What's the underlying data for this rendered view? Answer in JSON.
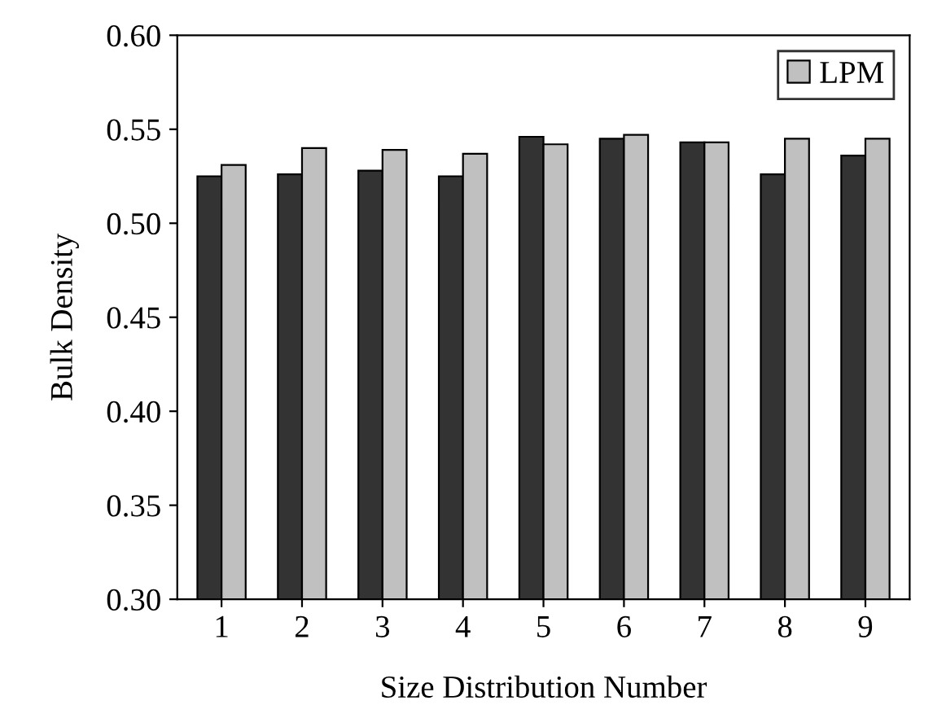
{
  "chart_data": {
    "type": "bar",
    "xlabel": "Size Distribution Number",
    "ylabel": "Bulk Density",
    "categories": [
      "1",
      "2",
      "3",
      "4",
      "5",
      "6",
      "7",
      "8",
      "9"
    ],
    "series": [
      {
        "color": "#333333",
        "values": [
          0.525,
          0.526,
          0.528,
          0.525,
          0.546,
          0.545,
          0.543,
          0.526,
          0.536
        ]
      },
      {
        "name": "LPM",
        "color": "#c0c0c0",
        "values": [
          0.531,
          0.54,
          0.539,
          0.537,
          0.542,
          0.547,
          0.543,
          0.545,
          0.545
        ]
      }
    ],
    "ylim": [
      0.3,
      0.6
    ],
    "yticks": [
      {
        "value": 0.3,
        "label": "0.30"
      },
      {
        "value": 0.35,
        "label": "0.35"
      },
      {
        "value": 0.4,
        "label": "0.40"
      },
      {
        "value": 0.45,
        "label": "0.45"
      },
      {
        "value": 0.5,
        "label": "0.50"
      },
      {
        "value": 0.55,
        "label": "0.55"
      },
      {
        "value": 0.6,
        "label": "0.60"
      }
    ],
    "grid": false,
    "legend": "top right"
  }
}
